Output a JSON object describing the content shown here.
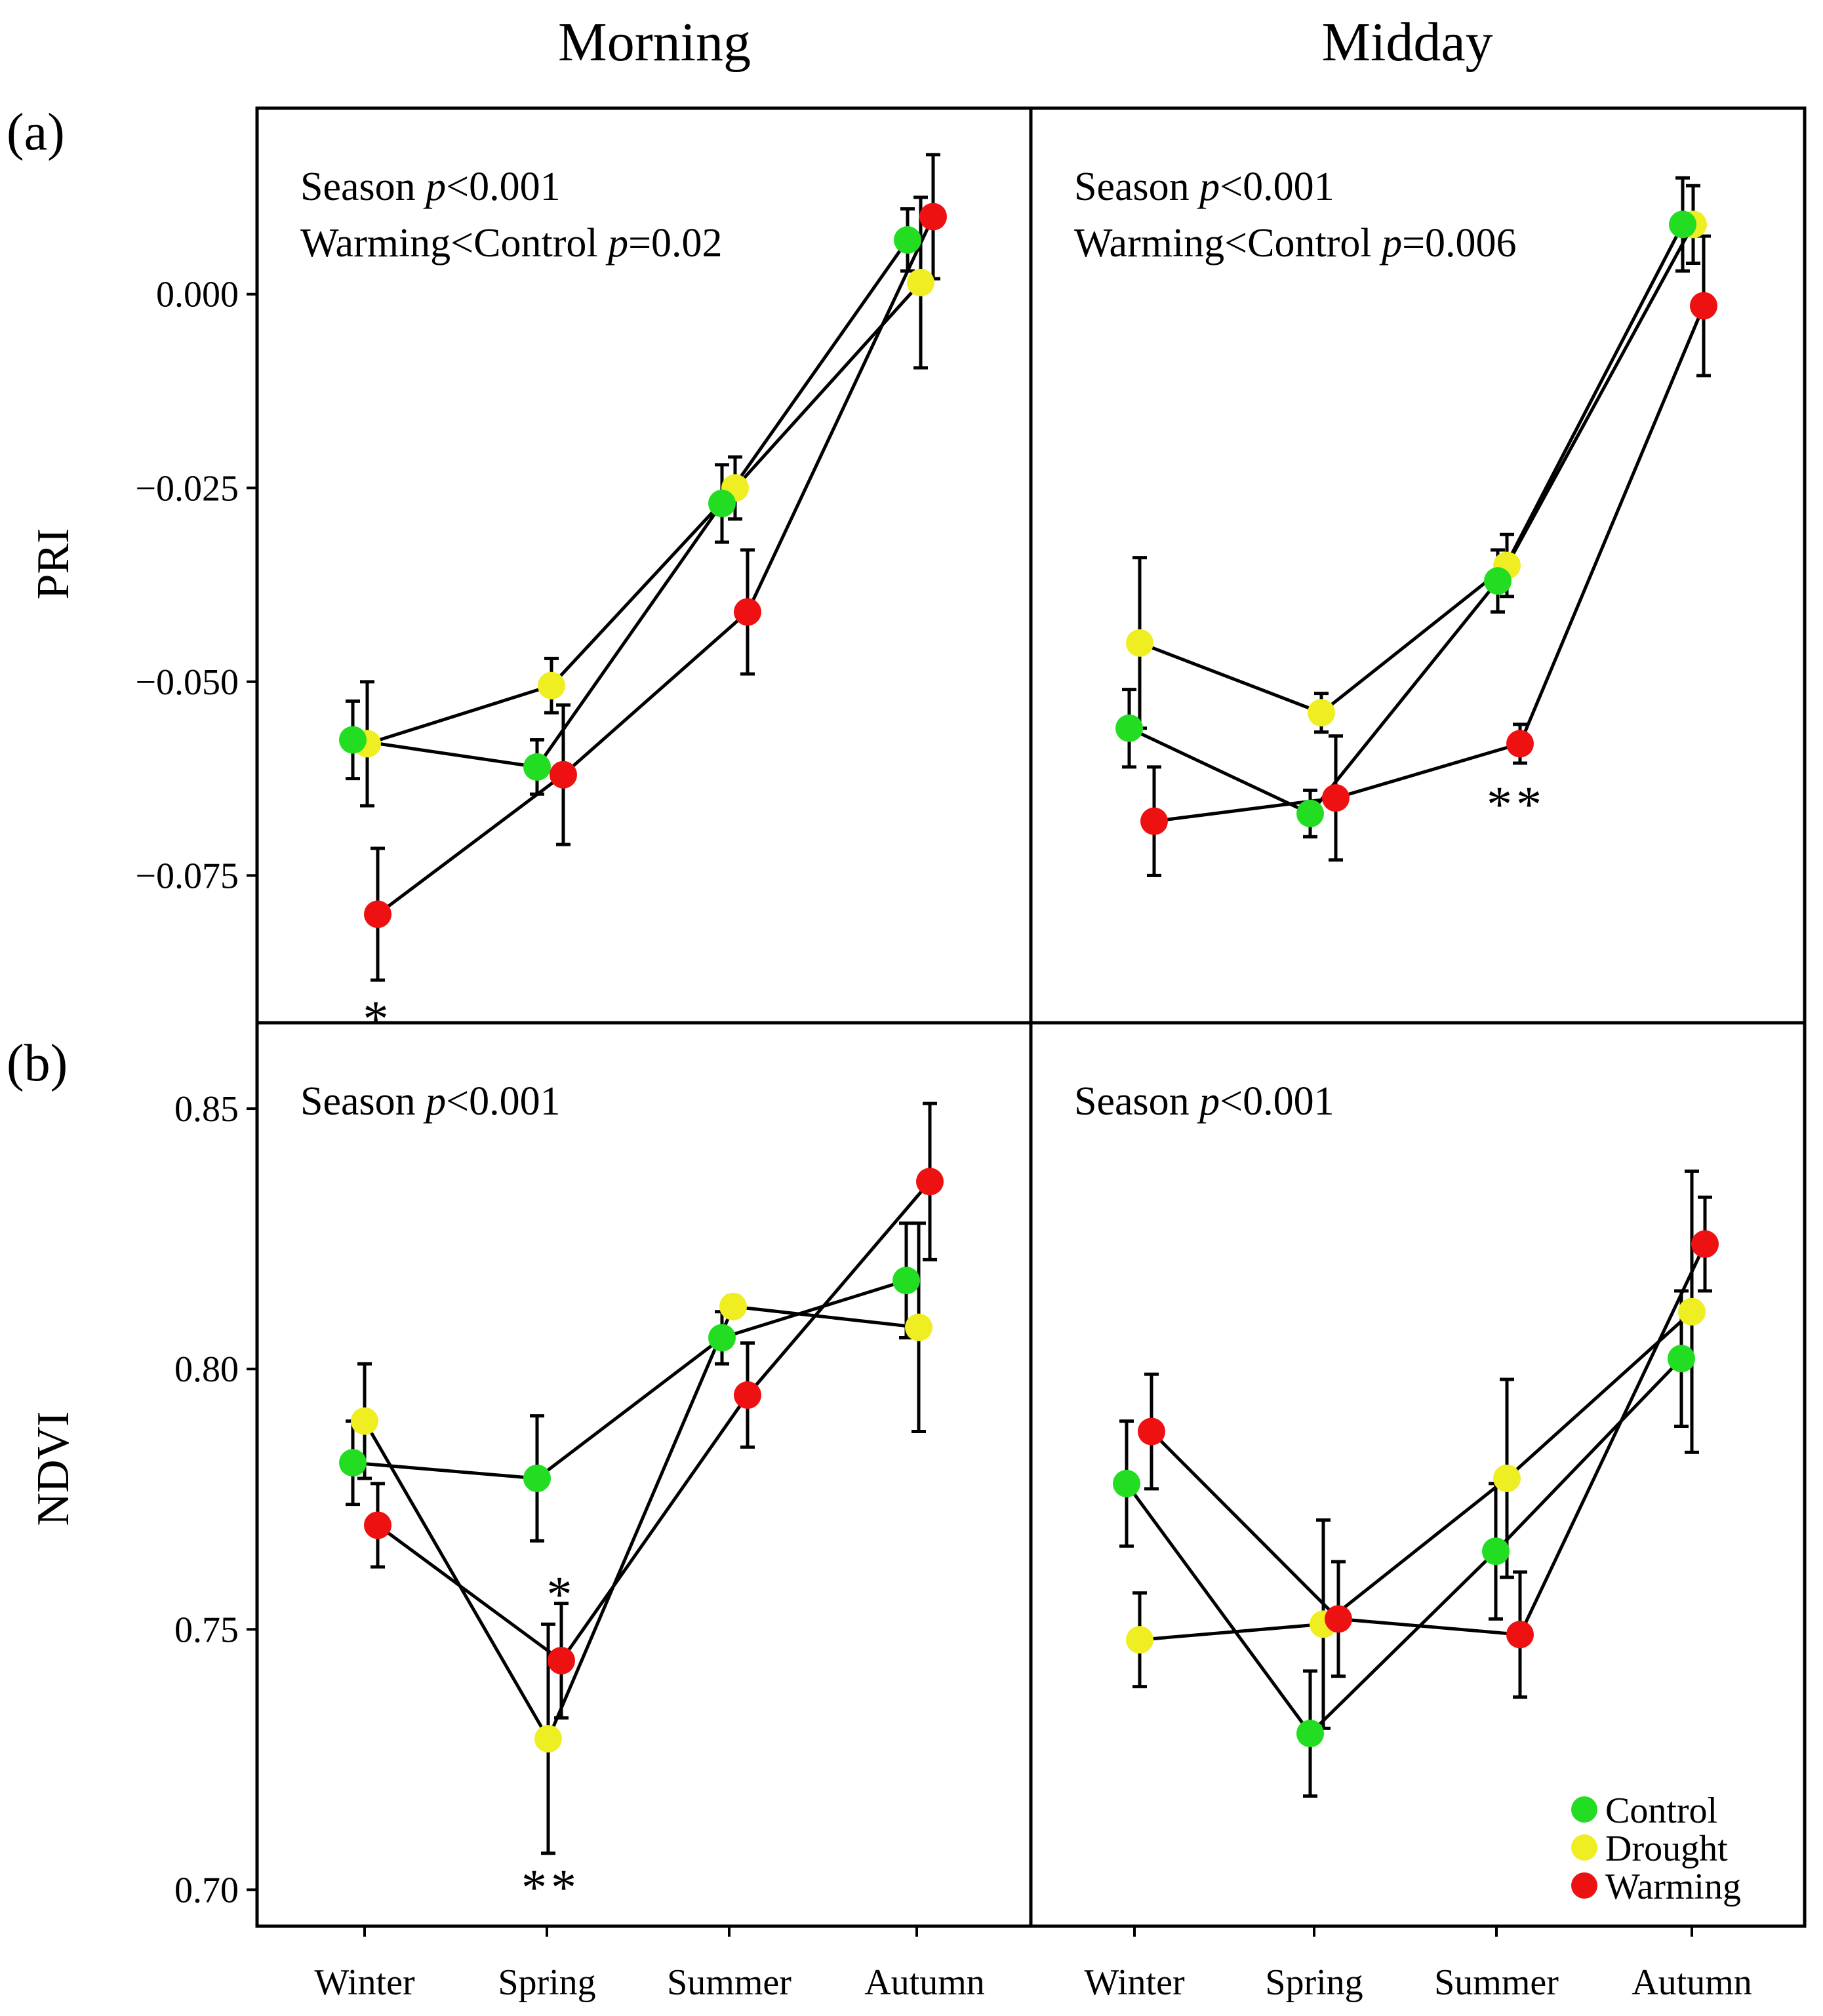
{
  "chart_data": {
    "type": "line",
    "columns": [
      "Morning",
      "Midday"
    ],
    "row_labels": [
      "(a)",
      "(b)"
    ],
    "x_categories": [
      "Winter",
      "Spring",
      "Summer",
      "Autumn"
    ],
    "legend": [
      {
        "name": "Control",
        "color": "#22dd22"
      },
      {
        "name": "Drought",
        "color": "#eeee22"
      },
      {
        "name": "Warming",
        "color": "#ee1111"
      }
    ],
    "panels": [
      {
        "id": "pri-morning",
        "row": "PRI",
        "column": "Morning",
        "ylabel": "PRI",
        "ylim": [
          -0.094,
          0.024
        ],
        "yticks": [
          0.0,
          -0.025,
          -0.05,
          -0.075
        ],
        "ytick_labels": [
          "0.000",
          "−0.025",
          "−0.050",
          "−0.075"
        ],
        "annotations": [
          {
            "text": "Season",
            "p": "p<0.001"
          },
          {
            "text": "Warming<Control",
            "p": "p=0.02"
          }
        ],
        "series": [
          {
            "name": "Control",
            "values": [
              -0.0575,
              -0.061,
              -0.027,
              0.007
            ],
            "err": [
              0.005,
              0.0035,
              0.005,
              0.004
            ]
          },
          {
            "name": "Drought",
            "values": [
              -0.058,
              -0.0505,
              -0.025,
              0.0015
            ],
            "err": [
              0.008,
              0.0035,
              0.004,
              0.011
            ]
          },
          {
            "name": "Warming",
            "values": [
              -0.08,
              -0.062,
              -0.041,
              0.01
            ],
            "err": [
              0.0085,
              0.009,
              0.008,
              0.008
            ]
          }
        ],
        "significance": [
          {
            "category": "Winter",
            "text": "*"
          }
        ]
      },
      {
        "id": "pri-midday",
        "row": "PRI",
        "column": "Midday",
        "ylabel": "",
        "ylim": [
          -0.094,
          0.024
        ],
        "yticks": [
          0.0,
          -0.025,
          -0.05,
          -0.075
        ],
        "ytick_labels": [],
        "annotations": [
          {
            "text": "Season",
            "p": "p<0.001"
          },
          {
            "text": "Warming<Control",
            "p": "p=0.006"
          }
        ],
        "series": [
          {
            "name": "Control",
            "values": [
              -0.056,
              -0.067,
              -0.037,
              0.009
            ],
            "err": [
              0.005,
              0.003,
              0.004,
              0.006
            ]
          },
          {
            "name": "Drought",
            "values": [
              -0.045,
              -0.054,
              -0.035,
              0.009
            ],
            "err": [
              0.011,
              0.0025,
              0.004,
              0.005
            ]
          },
          {
            "name": "Warming",
            "values": [
              -0.068,
              -0.065,
              -0.058,
              -0.0015
            ],
            "err": [
              0.007,
              0.008,
              0.0025,
              0.009
            ]
          }
        ],
        "significance": [
          {
            "category": "Summer",
            "text": "**"
          }
        ]
      },
      {
        "id": "ndvi-morning",
        "row": "NDVI",
        "column": "Morning",
        "ylabel": "NDVI",
        "ylim": [
          0.693,
          0.8665
        ],
        "yticks": [
          0.85,
          0.8,
          0.75,
          0.7
        ],
        "ytick_labels": [
          "0.85",
          "0.80",
          "0.75",
          "0.70"
        ],
        "annotations": [
          {
            "text": "Season",
            "p": "p<0.001"
          }
        ],
        "series": [
          {
            "name": "Control",
            "values": [
              0.782,
              0.779,
              0.806,
              0.817
            ],
            "err": [
              0.008,
              0.012,
              0.005,
              0.011
            ]
          },
          {
            "name": "Drought",
            "values": [
              0.79,
              0.729,
              0.812,
              0.808
            ],
            "err": [
              0.011,
              0.022,
              0.002,
              0.02
            ]
          },
          {
            "name": "Warming",
            "values": [
              0.77,
              0.744,
              0.795,
              0.836
            ],
            "err": [
              0.008,
              0.011,
              0.01,
              0.015
            ]
          }
        ],
        "significance": [
          {
            "category": "Spring",
            "text": "*",
            "position": "above-warming"
          },
          {
            "category": "Spring",
            "text": "**",
            "position": "below-drought"
          }
        ]
      },
      {
        "id": "ndvi-midday",
        "row": "NDVI",
        "column": "Midday",
        "ylabel": "",
        "ylim": [
          0.693,
          0.8665
        ],
        "yticks": [
          0.85,
          0.8,
          0.75,
          0.7
        ],
        "ytick_labels": [],
        "annotations": [
          {
            "text": "Season",
            "p": "p<0.001"
          }
        ],
        "series": [
          {
            "name": "Control",
            "values": [
              0.778,
              0.73,
              0.765,
              0.802
            ],
            "err": [
              0.012,
              0.012,
              0.013,
              0.013
            ]
          },
          {
            "name": "Drought",
            "values": [
              0.748,
              0.751,
              0.779,
              0.811
            ],
            "err": [
              0.009,
              0.02,
              0.019,
              0.027
            ]
          },
          {
            "name": "Warming",
            "values": [
              0.788,
              0.752,
              0.749,
              0.824
            ],
            "err": [
              0.011,
              0.011,
              0.012,
              0.009
            ]
          }
        ],
        "significance": []
      }
    ]
  }
}
